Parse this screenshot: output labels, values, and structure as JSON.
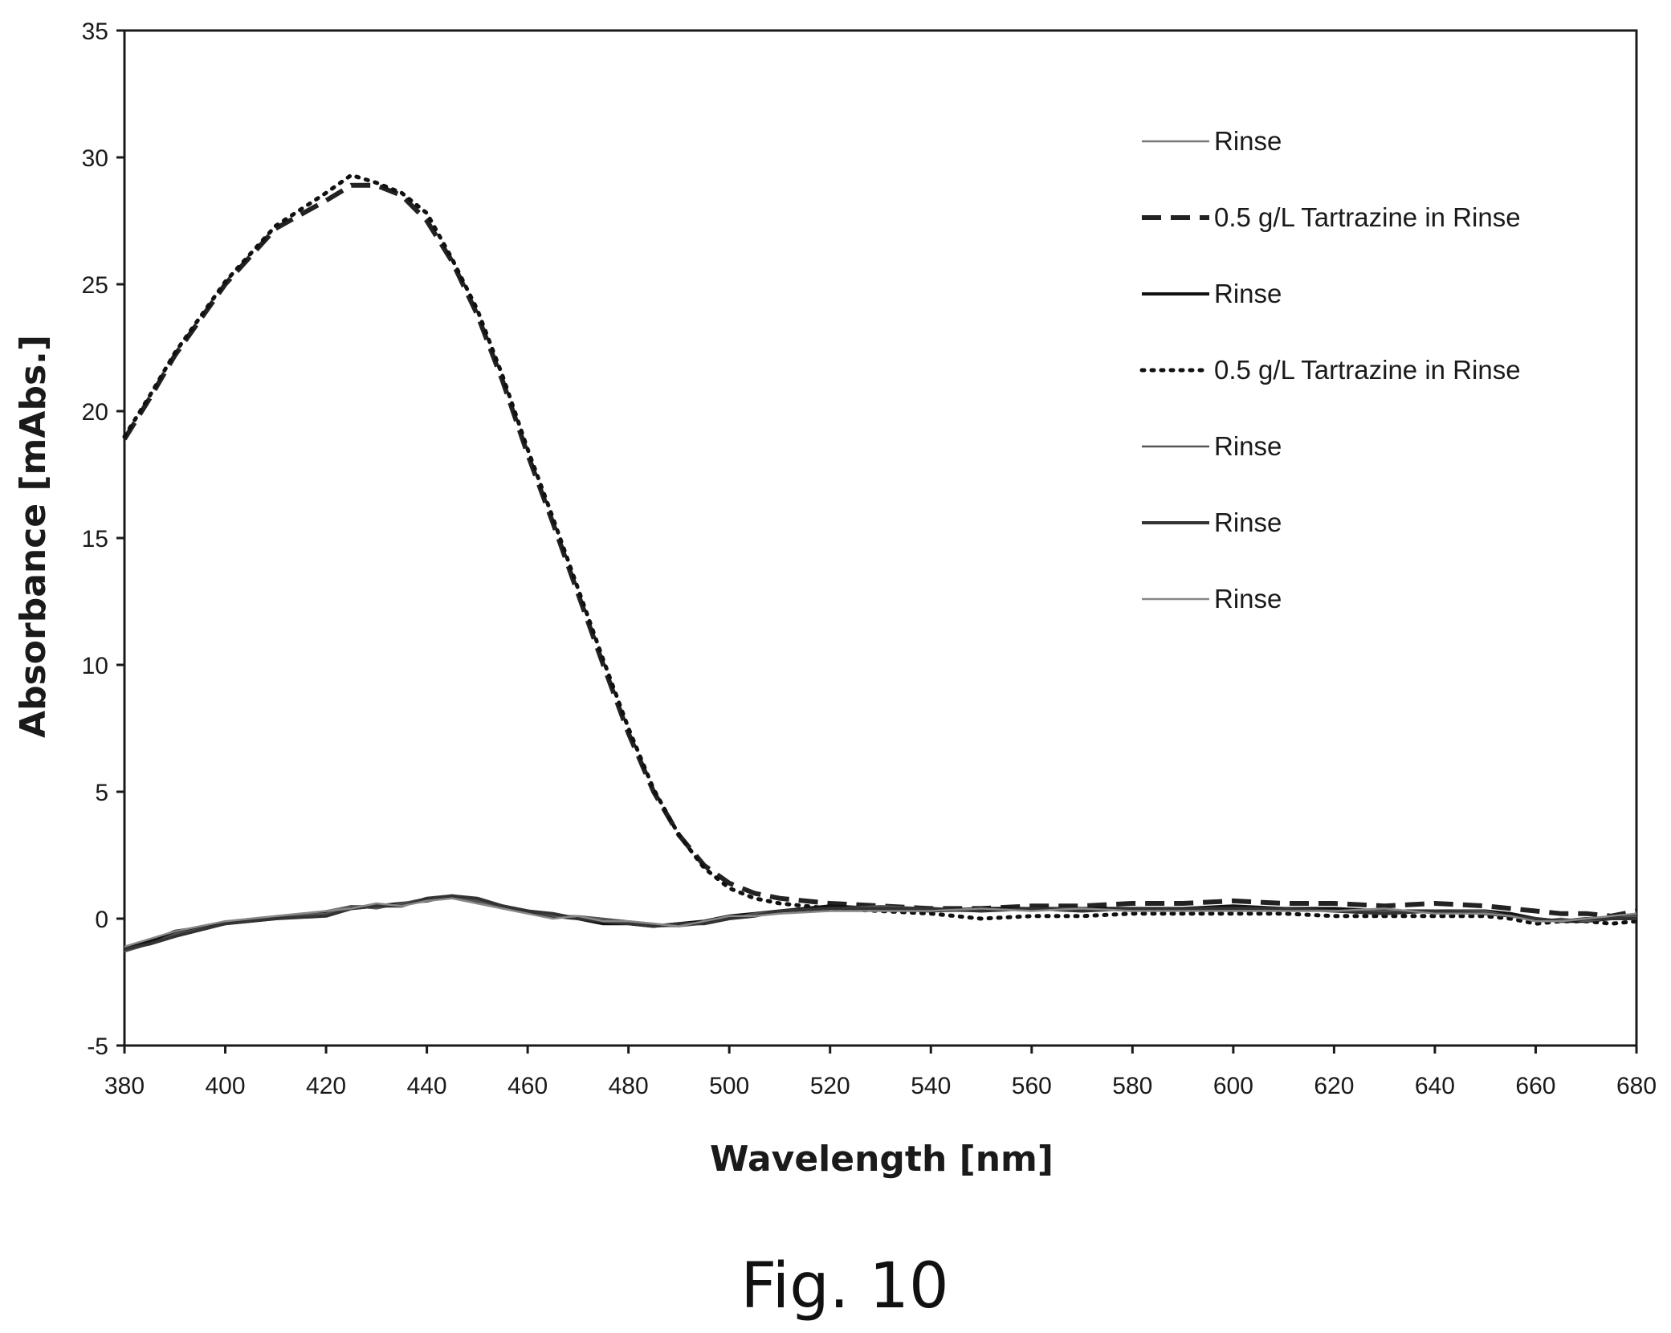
{
  "chart_data": {
    "type": "line",
    "xlabel": "Wavelength [nm]",
    "ylabel": "Absorbance [mAbs.]",
    "caption": "Fig. 10",
    "xlim": [
      380,
      680
    ],
    "ylim": [
      -5,
      35
    ],
    "x_ticks": [
      380,
      400,
      420,
      440,
      460,
      480,
      500,
      520,
      540,
      560,
      580,
      600,
      620,
      640,
      660,
      680
    ],
    "y_ticks": [
      -5,
      0,
      5,
      10,
      15,
      20,
      25,
      30,
      35
    ],
    "grid": false,
    "legend_position": "top-right",
    "x": [
      380,
      385,
      390,
      400,
      410,
      420,
      425,
      430,
      435,
      440,
      445,
      450,
      455,
      460,
      465,
      470,
      475,
      480,
      485,
      490,
      495,
      500,
      505,
      510,
      520,
      530,
      540,
      550,
      560,
      570,
      580,
      590,
      600,
      610,
      620,
      630,
      640,
      650,
      655,
      660,
      665,
      670,
      675,
      680
    ],
    "series": [
      {
        "name": "Rinse",
        "style": "solid-thin",
        "color": "#777777",
        "values": [
          -1.3,
          -1.0,
          -0.6,
          -0.1,
          0.0,
          0.3,
          0.5,
          0.5,
          0.6,
          0.8,
          0.8,
          0.6,
          0.4,
          0.2,
          0.1,
          0.0,
          -0.1,
          -0.2,
          -0.3,
          -0.3,
          -0.1,
          0.1,
          0.2,
          0.3,
          0.4,
          0.4,
          0.3,
          0.3,
          0.4,
          0.3,
          0.4,
          0.3,
          0.4,
          0.4,
          0.3,
          0.3,
          0.3,
          0.2,
          0.1,
          -0.1,
          -0.1,
          -0.1,
          0.0,
          0.1
        ]
      },
      {
        "name": "0.5 g/L Tartrazine in Rinse",
        "style": "dashed",
        "color": "#222222",
        "values": [
          18.9,
          20.5,
          22.2,
          25.0,
          27.2,
          28.3,
          28.9,
          28.9,
          28.5,
          27.5,
          25.9,
          23.8,
          21.2,
          18.3,
          15.6,
          12.8,
          10.0,
          7.3,
          5.0,
          3.3,
          2.1,
          1.4,
          1.0,
          0.8,
          0.6,
          0.5,
          0.4,
          0.4,
          0.5,
          0.5,
          0.6,
          0.6,
          0.7,
          0.6,
          0.6,
          0.5,
          0.6,
          0.5,
          0.4,
          0.3,
          0.2,
          0.2,
          0.1,
          0.3
        ]
      },
      {
        "name": "Rinse",
        "style": "solid",
        "color": "#111111",
        "values": [
          -1.2,
          -0.9,
          -0.5,
          -0.2,
          0.0,
          0.2,
          0.4,
          0.5,
          0.6,
          0.7,
          0.9,
          0.7,
          0.5,
          0.3,
          0.1,
          0.0,
          -0.2,
          -0.2,
          -0.3,
          -0.2,
          -0.1,
          0.1,
          0.2,
          0.3,
          0.5,
          0.4,
          0.3,
          0.4,
          0.4,
          0.4,
          0.4,
          0.4,
          0.5,
          0.4,
          0.4,
          0.3,
          0.3,
          0.3,
          0.2,
          0.0,
          -0.1,
          -0.1,
          0.0,
          0.1
        ]
      },
      {
        "name": "0.5 g/L Tartrazine in Rinse",
        "style": "dotted",
        "color": "#111111",
        "values": [
          19.0,
          20.6,
          22.3,
          25.1,
          27.3,
          28.6,
          29.3,
          29.0,
          28.6,
          27.8,
          26.0,
          24.0,
          21.4,
          18.5,
          15.8,
          13.0,
          10.2,
          7.5,
          5.1,
          3.3,
          2.0,
          1.2,
          0.8,
          0.6,
          0.4,
          0.3,
          0.2,
          0.0,
          0.1,
          0.1,
          0.2,
          0.2,
          0.2,
          0.2,
          0.1,
          0.1,
          0.1,
          0.1,
          0.0,
          -0.2,
          -0.1,
          -0.1,
          -0.2,
          -0.1
        ]
      },
      {
        "name": "Rinse",
        "style": "solid-thin",
        "color": "#555555",
        "values": [
          -1.3,
          -1.0,
          -0.6,
          -0.2,
          0.1,
          0.2,
          0.5,
          0.4,
          0.6,
          0.8,
          0.8,
          0.7,
          0.4,
          0.3,
          0.1,
          0.1,
          0.0,
          -0.1,
          -0.2,
          -0.3,
          -0.2,
          0.0,
          0.2,
          0.3,
          0.4,
          0.5,
          0.4,
          0.3,
          0.4,
          0.4,
          0.3,
          0.4,
          0.4,
          0.4,
          0.3,
          0.3,
          0.3,
          0.3,
          0.1,
          -0.1,
          0.0,
          -0.1,
          0.0,
          0.1
        ]
      },
      {
        "name": "Rinse",
        "style": "solid",
        "color": "#333333",
        "values": [
          -1.2,
          -1.0,
          -0.7,
          -0.2,
          0.0,
          0.1,
          0.4,
          0.5,
          0.5,
          0.8,
          0.9,
          0.8,
          0.5,
          0.3,
          0.2,
          0.0,
          -0.1,
          -0.2,
          -0.3,
          -0.2,
          -0.2,
          0.0,
          0.1,
          0.3,
          0.4,
          0.4,
          0.4,
          0.3,
          0.4,
          0.3,
          0.4,
          0.4,
          0.4,
          0.4,
          0.3,
          0.2,
          0.3,
          0.2,
          0.1,
          0.0,
          -0.1,
          0.0,
          0.0,
          0.0
        ]
      },
      {
        "name": "Rinse",
        "style": "solid-thin",
        "color": "#888888",
        "values": [
          -1.1,
          -0.8,
          -0.5,
          -0.1,
          0.1,
          0.3,
          0.4,
          0.6,
          0.5,
          0.7,
          0.8,
          0.6,
          0.4,
          0.2,
          0.0,
          0.1,
          -0.1,
          -0.1,
          -0.2,
          -0.3,
          -0.1,
          0.1,
          0.1,
          0.2,
          0.3,
          0.3,
          0.3,
          0.4,
          0.3,
          0.4,
          0.3,
          0.3,
          0.3,
          0.3,
          0.3,
          0.4,
          0.2,
          0.2,
          0.1,
          -0.1,
          -0.1,
          0.0,
          0.1,
          0.2
        ]
      }
    ]
  }
}
